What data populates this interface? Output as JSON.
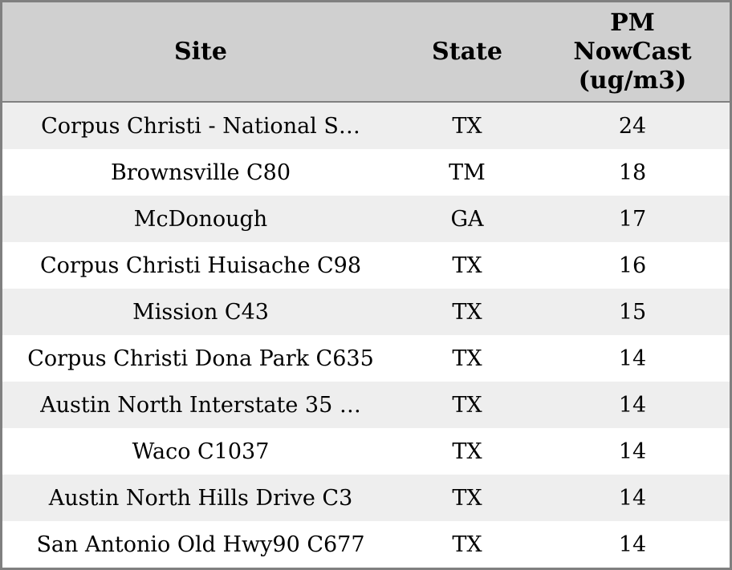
{
  "table": {
    "columns": {
      "site_label": "Site",
      "state_label": "State",
      "value_label": "PM\nNowCast\n(ug/m3)"
    },
    "rows": [
      {
        "site": "Corpus Christi - National S…",
        "state": "TX",
        "value": "24"
      },
      {
        "site": "Brownsville C80",
        "state": "TM",
        "value": "18"
      },
      {
        "site": "McDonough",
        "state": "GA",
        "value": "17"
      },
      {
        "site": "Corpus Christi Huisache C98",
        "state": "TX",
        "value": "16"
      },
      {
        "site": "Mission C43",
        "state": "TX",
        "value": "15"
      },
      {
        "site": "Corpus Christi Dona Park C635",
        "state": "TX",
        "value": "14"
      },
      {
        "site": "Austin North Interstate 35 …",
        "state": "TX",
        "value": "14"
      },
      {
        "site": "Waco C1037",
        "state": "TX",
        "value": "14"
      },
      {
        "site": "Austin North Hills Drive C3",
        "state": "TX",
        "value": "14"
      },
      {
        "site": "San Antonio Old Hwy90 C677",
        "state": "TX",
        "value": "14"
      }
    ],
    "colors": {
      "header_bg": "#d0d0d0",
      "row_alt_bg": "#eeeeee",
      "row_bg": "#ffffff",
      "border": "#808080",
      "text": "#000000"
    }
  }
}
